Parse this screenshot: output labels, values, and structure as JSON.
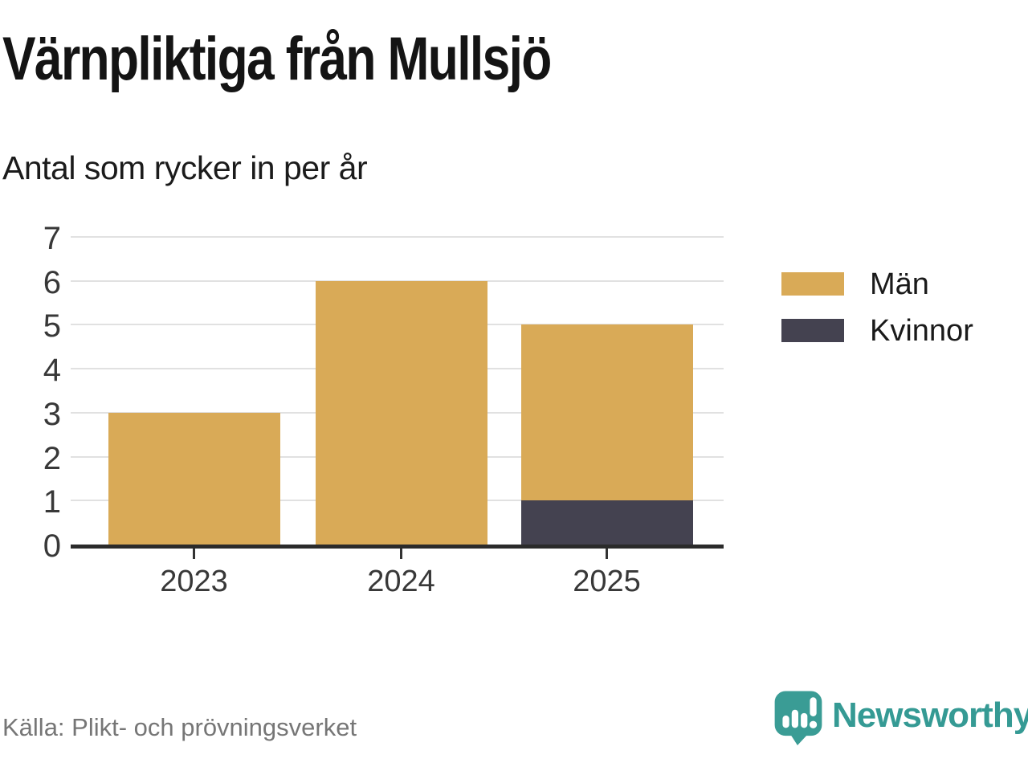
{
  "header": {
    "title": "Värnpliktiga från Mullsjö",
    "subtitle": "Antal som rycker in per år"
  },
  "chart_data": {
    "type": "bar",
    "stacked": true,
    "title": "Värnpliktiga från Mullsjö",
    "subtitle": "Antal som rycker in per år",
    "categories": [
      "2023",
      "2024",
      "2025"
    ],
    "series": [
      {
        "name": "Män",
        "values": [
          3,
          6,
          4
        ],
        "color": "#d9aa57"
      },
      {
        "name": "Kvinnor",
        "values": [
          0,
          0,
          1
        ],
        "color": "#444250"
      }
    ],
    "totals": [
      3,
      6,
      5
    ],
    "xlabel": "",
    "ylabel": "",
    "ylim": [
      0,
      7
    ],
    "yticks": [
      0,
      1,
      2,
      3,
      4,
      5,
      6,
      7
    ],
    "grid": true,
    "legend_position": "right",
    "grid_color": "#e1e1e1",
    "axis_color": "#2b2b2b"
  },
  "footer": {
    "source": "Källa: Plikt- och prövningsverket",
    "brand": "Newsworthy",
    "brand_color": "#359a94"
  }
}
